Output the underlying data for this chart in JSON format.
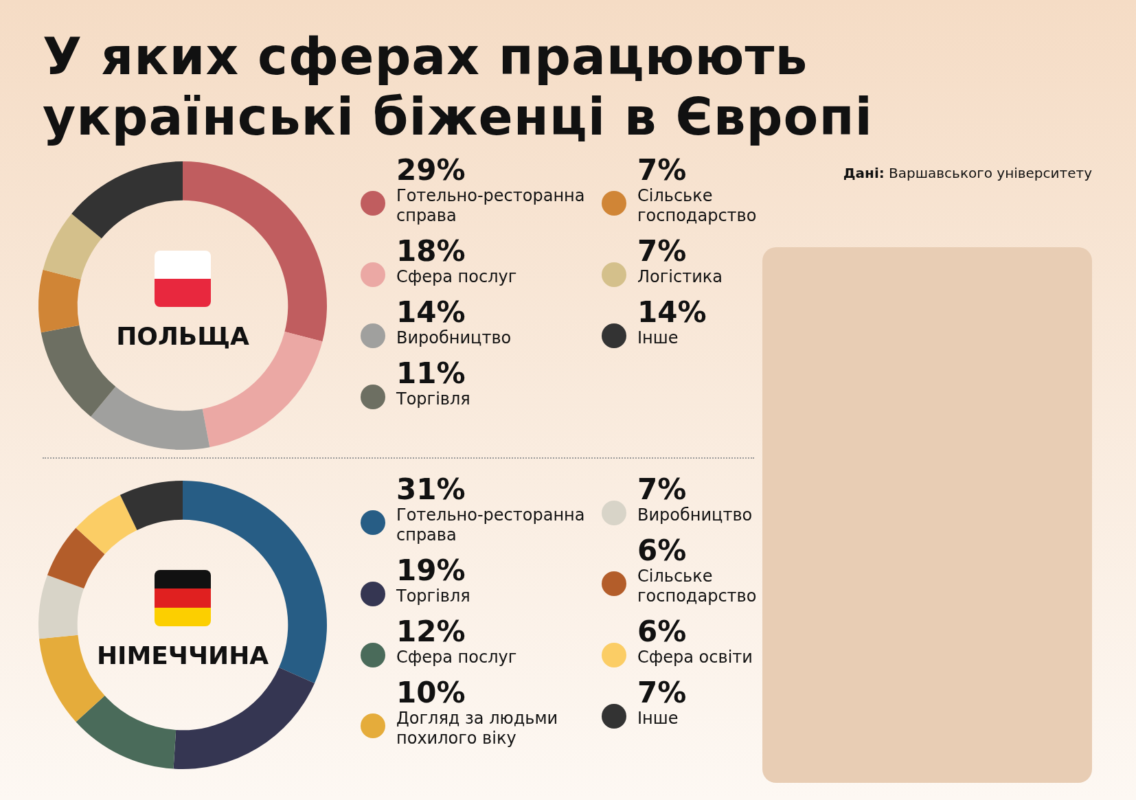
{
  "chart_data": [
    {
      "type": "donut",
      "title": "У яких сферах працюють українські біженці в Європі",
      "subtitle": "ПОЛЬЩА",
      "legend": "right",
      "annotations": [
        "Дані: Варшавського університету"
      ],
      "categories": [
        "Готельно-ресторанна справа",
        "Сфера послуг",
        "Виробництво",
        "Торгівля",
        "Сільське господарство",
        "Логістика",
        "Інше"
      ],
      "values": [
        29,
        18,
        14,
        11,
        7,
        7,
        14
      ],
      "value_labels": [
        "29%",
        "18%",
        "14%",
        "11%",
        "7%",
        "7%",
        "14%"
      ],
      "colors": [
        "#c05d5f",
        "#eba8a4",
        "#a0a09e",
        "#6d6f62",
        "#d08536",
        "#d4c08b",
        "#333333"
      ]
    },
    {
      "type": "donut",
      "subtitle": "НІМЕЧЧИНА",
      "legend": "right",
      "categories": [
        "Готельно-ресторанна справа",
        "Торгівля",
        "Сфера послуг",
        "Догляд за людьми похилого віку",
        "Виробництво",
        "Сільське господарство",
        "Сфера освіти",
        "Інше"
      ],
      "values": [
        31,
        19,
        12,
        10,
        7,
        6,
        6,
        7
      ],
      "value_labels": [
        "31%",
        "19%",
        "12%",
        "10%",
        "7%",
        "6%",
        "6%",
        "7%"
      ],
      "colors": [
        "#275d85",
        "#353652",
        "#4a6b5a",
        "#e5ac3b",
        "#d8d4c8",
        "#b35d2a",
        "#fbcd65",
        "#333333"
      ]
    }
  ]
}
